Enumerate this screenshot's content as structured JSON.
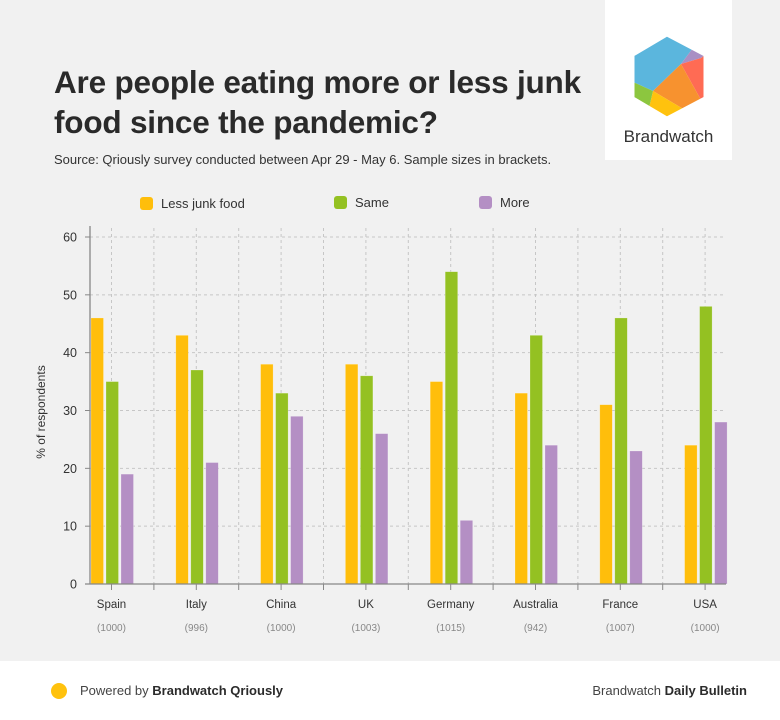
{
  "header": {
    "title": "Are people eating more or less junk food since the pandemic?",
    "subtitle": "Source: Qriously survey conducted between Apr 29 - May 6. Sample sizes in brackets."
  },
  "logo": {
    "text": "Brandwatch",
    "colors": [
      "#5bb6dd",
      "#a98fc4",
      "#ff6b54",
      "#f7922f",
      "#ffc20e",
      "#8cc63f"
    ]
  },
  "footer": {
    "left_prefix": "Powered by ",
    "left_bold": "Brandwatch Qriously",
    "right_prefix": "Brandwatch ",
    "right_bold": "Daily Bulletin",
    "dot_color": "#ffc20e"
  },
  "chart_data": {
    "type": "bar",
    "title": "Are people eating more or less junk food since the pandemic?",
    "xlabel": "",
    "ylabel": "% of respondents",
    "ylim": [
      0,
      60
    ],
    "yticks": [
      0,
      10,
      20,
      30,
      40,
      50,
      60
    ],
    "grid": true,
    "legend_position": "top",
    "categories": [
      "Spain",
      "Italy",
      "China",
      "UK",
      "Germany",
      "Australia",
      "France",
      "USA"
    ],
    "sample_sizes": [
      "(1000)",
      "(996)",
      "(1000)",
      "(1003)",
      "(1015)",
      "(942)",
      "(1007)",
      "(1000)"
    ],
    "series": [
      {
        "name": "Less junk food",
        "color": "#ffbe0b",
        "values": [
          46,
          43,
          38,
          38,
          35,
          33,
          31,
          24
        ]
      },
      {
        "name": "Same",
        "color": "#94c122",
        "values": [
          35,
          37,
          33,
          36,
          54,
          43,
          46,
          48
        ]
      },
      {
        "name": "More",
        "color": "#b48fc4",
        "values": [
          19,
          21,
          29,
          26,
          11,
          24,
          23,
          28
        ]
      }
    ]
  }
}
